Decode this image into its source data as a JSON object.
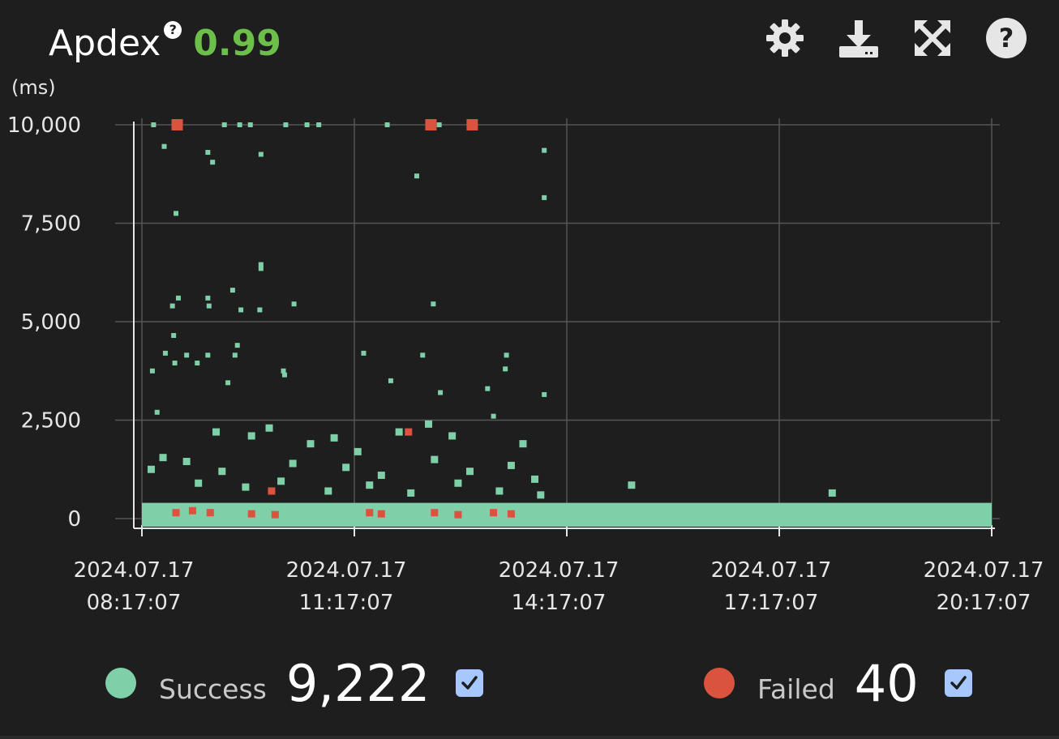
{
  "header": {
    "title": "Apdex",
    "help_icon": "?",
    "value": "0.99",
    "value_color": "#6cc04a"
  },
  "toolbar": {
    "icons": [
      "gear-icon",
      "download-icon",
      "expand-icon",
      "help-icon"
    ]
  },
  "legend": {
    "success_label": "Success",
    "success_count": "9,222",
    "success_color": "#7fcfa8",
    "failed_label": "Failed",
    "failed_count": "40",
    "failed_color": "#d9533f"
  },
  "chart_data": {
    "type": "scatter",
    "ylabel": "(ms)",
    "ylim": [
      0,
      10000
    ],
    "y_ticks": [
      "0",
      "2,500",
      "5,000",
      "7,500",
      "10,000"
    ],
    "y_tick_values": [
      0,
      2500,
      5000,
      7500,
      10000
    ],
    "x_ticks": [
      [
        "2024.07.17",
        "08:17:07"
      ],
      [
        "2024.07.17",
        "11:17:07"
      ],
      [
        "2024.07.17",
        "14:17:07"
      ],
      [
        "2024.07.17",
        "17:17:07"
      ],
      [
        "2024.07.17",
        "20:17:07"
      ]
    ],
    "xlim": [
      "2024.07.17 08:17:07",
      "2024.07.17 20:17:07"
    ],
    "grid": true,
    "baseline_band": {
      "series": "Success",
      "from": "2024.07.17 08:17:07",
      "to": "2024.07.17 20:17:07",
      "y_range": [
        0,
        400
      ]
    },
    "series": [
      {
        "name": "Success",
        "points": [
          [
            "2024.07.17 08:27",
            10000
          ],
          [
            "2024.07.17 09:27",
            10000
          ],
          [
            "2024.07.17 09:40",
            10000
          ],
          [
            "2024.07.17 09:49",
            10000
          ],
          [
            "2024.07.17 10:19",
            10000
          ],
          [
            "2024.07.17 10:37",
            10000
          ],
          [
            "2024.07.17 10:47",
            10000
          ],
          [
            "2024.07.17 11:45",
            10000
          ],
          [
            "2024.07.17 12:29",
            10000
          ],
          [
            "2024.07.17 08:36",
            9450
          ],
          [
            "2024.07.17 09:13",
            9300
          ],
          [
            "2024.07.17 09:17",
            9050
          ],
          [
            "2024.07.17 09:58",
            9250
          ],
          [
            "2024.07.17 13:58",
            9350
          ],
          [
            "2024.07.17 12:10",
            8700
          ],
          [
            "2024.07.17 13:58",
            8150
          ],
          [
            "2024.07.17 08:46",
            7750
          ],
          [
            "2024.07.17 09:58",
            6450
          ],
          [
            "2024.07.17 09:58",
            6350
          ],
          [
            "2024.07.17 09:34",
            5800
          ],
          [
            "2024.07.17 08:48",
            5600
          ],
          [
            "2024.07.17 09:13",
            5600
          ],
          [
            "2024.07.17 09:14",
            5400
          ],
          [
            "2024.07.17 12:24",
            5450
          ],
          [
            "2024.07.17 08:43",
            5400
          ],
          [
            "2024.07.17 09:41",
            5300
          ],
          [
            "2024.07.17 09:57",
            5300
          ],
          [
            "2024.07.17 10:26",
            5450
          ],
          [
            "2024.07.17 08:44",
            4650
          ],
          [
            "2024.07.17 09:38",
            4400
          ],
          [
            "2024.07.17 08:37",
            4200
          ],
          [
            "2024.07.17 08:55",
            4150
          ],
          [
            "2024.07.17 09:13",
            4150
          ],
          [
            "2024.07.17 09:36",
            4150
          ],
          [
            "2024.07.17 11:25",
            4200
          ],
          [
            "2024.07.17 12:15",
            4150
          ],
          [
            "2024.07.17 13:26",
            4150
          ],
          [
            "2024.07.17 08:45",
            3950
          ],
          [
            "2024.07.17 09:04",
            3950
          ],
          [
            "2024.07.17 08:26",
            3750
          ],
          [
            "2024.07.17 10:17",
            3750
          ],
          [
            "2024.07.17 10:18",
            3650
          ],
          [
            "2024.07.17 11:48",
            3500
          ],
          [
            "2024.07.17 13:25",
            3800
          ],
          [
            "2024.07.17 09:30",
            3450
          ],
          [
            "2024.07.17 12:30",
            3200
          ],
          [
            "2024.07.17 13:10",
            3300
          ],
          [
            "2024.07.17 13:58",
            3150
          ],
          [
            "2024.07.17 08:30",
            2700
          ],
          [
            "2024.07.17 09:20",
            2200
          ],
          [
            "2024.07.17 09:50",
            2100
          ],
          [
            "2024.07.17 10:05",
            2300
          ],
          [
            "2024.07.17 10:40",
            1900
          ],
          [
            "2024.07.17 11:00",
            2050
          ],
          [
            "2024.07.17 11:20",
            1700
          ],
          [
            "2024.07.17 11:55",
            2200
          ],
          [
            "2024.07.17 12:20",
            2400
          ],
          [
            "2024.07.17 12:40",
            2100
          ],
          [
            "2024.07.17 13:15",
            2600
          ],
          [
            "2024.07.17 13:40",
            1900
          ],
          [
            "2024.07.17 08:35",
            1550
          ],
          [
            "2024.07.17 08:55",
            1450
          ],
          [
            "2024.07.17 09:25",
            1200
          ],
          [
            "2024.07.17 10:25",
            1400
          ],
          [
            "2024.07.17 11:10",
            1300
          ],
          [
            "2024.07.17 11:40",
            1100
          ],
          [
            "2024.07.17 12:25",
            1500
          ],
          [
            "2024.07.17 12:55",
            1200
          ],
          [
            "2024.07.17 13:30",
            1350
          ],
          [
            "2024.07.17 13:50",
            1000
          ],
          [
            "2024.07.17 08:25",
            1250
          ],
          [
            "2024.07.17 09:05",
            900
          ],
          [
            "2024.07.17 09:45",
            800
          ],
          [
            "2024.07.17 10:15",
            950
          ],
          [
            "2024.07.17 10:55",
            700
          ],
          [
            "2024.07.17 11:30",
            850
          ],
          [
            "2024.07.17 12:05",
            650
          ],
          [
            "2024.07.17 12:45",
            900
          ],
          [
            "2024.07.17 13:20",
            700
          ],
          [
            "2024.07.17 13:55",
            600
          ],
          [
            "2024.07.17 15:12",
            850
          ],
          [
            "2024.07.17 18:02",
            650
          ]
        ]
      },
      {
        "name": "Failed",
        "points": [
          [
            "2024.07.17 08:47",
            10000
          ],
          [
            "2024.07.17 12:22",
            10000
          ],
          [
            "2024.07.17 12:57",
            10000
          ],
          [
            "2024.07.17 12:03",
            2200
          ],
          [
            "2024.07.17 10:07",
            700
          ],
          [
            "2024.07.17 08:46",
            150
          ],
          [
            "2024.07.17 09:00",
            200
          ],
          [
            "2024.07.17 09:15",
            150
          ],
          [
            "2024.07.17 09:50",
            120
          ],
          [
            "2024.07.17 10:10",
            100
          ],
          [
            "2024.07.17 11:30",
            150
          ],
          [
            "2024.07.17 11:40",
            120
          ],
          [
            "2024.07.17 12:25",
            150
          ],
          [
            "2024.07.17 12:45",
            100
          ],
          [
            "2024.07.17 13:15",
            150
          ],
          [
            "2024.07.17 13:30",
            120
          ]
        ]
      }
    ]
  }
}
